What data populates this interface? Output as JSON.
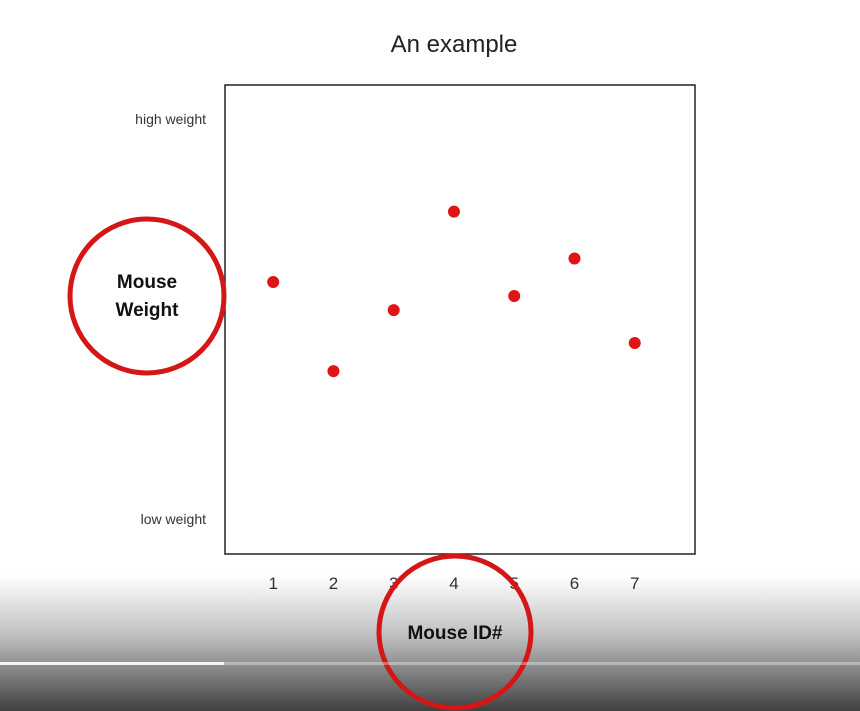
{
  "chart_data": {
    "type": "scatter",
    "title": "An example",
    "xlabel": "Mouse ID#",
    "ylabel": "Mouse Weight",
    "categories": [
      "1",
      "2",
      "3",
      "4",
      "5",
      "6",
      "7"
    ],
    "ytick_labels": {
      "top": "high weight",
      "bottom": "low weight"
    },
    "x": [
      1,
      2,
      3,
      4,
      5,
      6,
      7
    ],
    "values": [
      58,
      39,
      52,
      73,
      55,
      63,
      45
    ],
    "xlim": [
      0.2,
      8.0
    ],
    "ylim": [
      0,
      100
    ],
    "grid": false,
    "legend": "none",
    "point_color": "#e01414",
    "highlight_color": "#d51616"
  },
  "player": {
    "progress": 0.26
  }
}
